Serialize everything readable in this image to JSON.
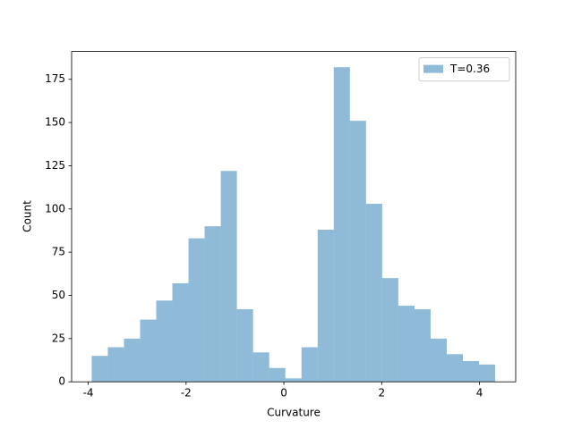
{
  "chart_data": {
    "type": "histogram",
    "xlabel": "Curvature",
    "ylabel": "Count",
    "bins": [
      -3.93,
      -3.6,
      -3.27,
      -2.94,
      -2.61,
      -2.28,
      -1.95,
      -1.62,
      -1.29,
      -0.96,
      -0.63,
      -0.3,
      0.03,
      0.36,
      0.69,
      1.02,
      1.35,
      1.68,
      2.01,
      2.34,
      2.67,
      3.0,
      3.33,
      3.66,
      3.99,
      4.32
    ],
    "series": [
      {
        "name": "T=0.36",
        "color": "#1f77b4",
        "alpha": 0.5,
        "values": [
          15,
          20,
          25,
          36,
          47,
          57,
          83,
          90,
          122,
          42,
          17,
          8,
          2,
          20,
          88,
          182,
          151,
          103,
          60,
          44,
          42,
          25,
          16,
          12,
          10
        ]
      }
    ],
    "xlim": [
      -4.34,
      4.74
    ],
    "ylim": [
      0,
      191.1
    ],
    "xticks": [
      -4,
      -2,
      0,
      2,
      4
    ],
    "yticks": [
      0,
      25,
      50,
      75,
      100,
      125,
      150,
      175
    ],
    "legend": "upper right"
  }
}
